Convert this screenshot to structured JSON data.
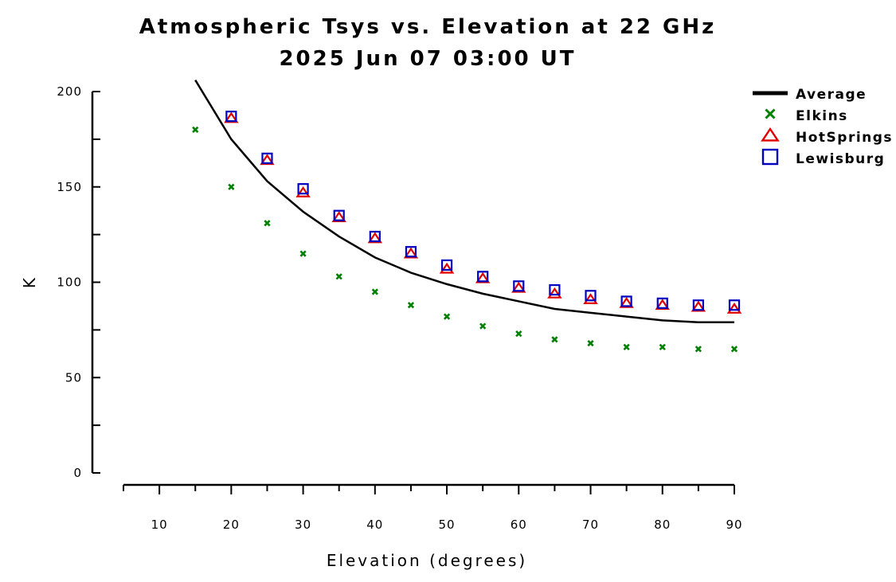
{
  "chart_data": {
    "type": "line",
    "title": "Atmospheric Tsys vs. Elevation at 22 GHz",
    "subtitle": "2025 Jun 07 03:00 UT",
    "xlabel": "Elevation (degrees)",
    "ylabel": "K",
    "xlim": [
      5,
      90
    ],
    "ylim": [
      0,
      200
    ],
    "x_ticks": [
      10,
      20,
      30,
      40,
      50,
      60,
      70,
      80,
      90
    ],
    "y_ticks": [
      0,
      50,
      100,
      150,
      200
    ],
    "grid": false,
    "legend_position": "top-right",
    "series": [
      {
        "name": "Average",
        "style": "line",
        "color": "#000000",
        "x": [
          15,
          20,
          25,
          30,
          35,
          40,
          45,
          50,
          55,
          60,
          65,
          70,
          75,
          80,
          85,
          90
        ],
        "y": [
          206,
          175,
          153,
          137,
          124,
          113,
          105,
          99,
          94,
          90,
          86,
          84,
          82,
          80,
          79,
          79
        ]
      },
      {
        "name": "Elkins",
        "style": "x-marker",
        "color": "#008000",
        "x": [
          15,
          20,
          25,
          30,
          35,
          40,
          45,
          50,
          55,
          60,
          65,
          70,
          75,
          80,
          85,
          90
        ],
        "y": [
          180,
          150,
          131,
          115,
          103,
          95,
          88,
          82,
          77,
          73,
          70,
          68,
          66,
          66,
          65,
          65
        ]
      },
      {
        "name": "HotSprings",
        "style": "triangle-marker",
        "color": "#e00000",
        "x": [
          20,
          25,
          30,
          35,
          40,
          45,
          50,
          55,
          60,
          65,
          70,
          75,
          80,
          85,
          90
        ],
        "y": [
          186,
          164,
          147,
          134,
          123,
          115,
          107,
          102,
          97,
          94,
          91,
          89,
          88,
          87,
          86
        ]
      },
      {
        "name": "Lewisburg",
        "style": "square-marker",
        "color": "#0000c0",
        "x": [
          20,
          25,
          30,
          35,
          40,
          45,
          50,
          55,
          60,
          65,
          70,
          75,
          80,
          85,
          90
        ],
        "y": [
          187,
          165,
          149,
          135,
          124,
          116,
          109,
          103,
          98,
          96,
          93,
          90,
          89,
          88,
          88
        ]
      }
    ]
  }
}
